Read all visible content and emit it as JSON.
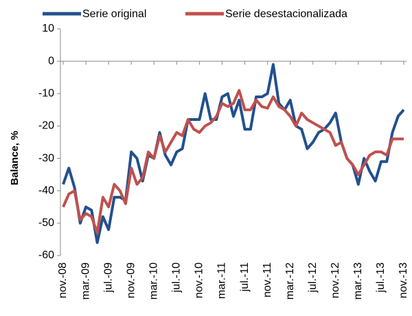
{
  "chart_data": {
    "type": "line",
    "y_label": "Balance, %",
    "categories": [
      "nov.-08",
      null,
      null,
      null,
      "mar.-09",
      null,
      null,
      null,
      "jul.-09",
      null,
      null,
      null,
      "nov.-09",
      null,
      null,
      null,
      "mar.-10",
      null,
      null,
      null,
      "jul.-10",
      null,
      null,
      null,
      "nov.-10",
      null,
      null,
      null,
      "mar.-11",
      null,
      null,
      null,
      "jul.-11",
      null,
      null,
      null,
      "nov.-11",
      null,
      null,
      null,
      "mar.-12",
      null,
      null,
      null,
      "jul.-12",
      null,
      null,
      null,
      "nov.-12",
      null,
      null,
      null,
      "mar.-13",
      null,
      null,
      null,
      "jul.-13",
      null,
      null,
      null,
      "nov.-13"
    ],
    "series": [
      {
        "name": "Serie original",
        "color": "#22508e",
        "values": [
          -38,
          -33,
          -39,
          -50,
          -45,
          -46,
          -56,
          -48,
          -52,
          -42,
          -42,
          -43,
          -28,
          -30,
          -37,
          -29,
          -30,
          -22,
          -29,
          -32,
          -28,
          -27,
          -18,
          -18,
          -18,
          -10,
          -18,
          -18,
          -11,
          -10,
          -17,
          -12,
          -21,
          -21,
          -11,
          -11,
          -10,
          -1,
          -13,
          -15,
          -12,
          -20,
          -21,
          -27,
          -25,
          -22,
          -21,
          -19,
          -16,
          -25,
          -30,
          -32,
          -38,
          -30,
          -34,
          -37,
          -31,
          -31,
          -22,
          -17,
          -15
        ]
      },
      {
        "name": "Serie desestacionalizada",
        "color": "#c0504d",
        "values": [
          -45,
          -41,
          -40,
          -49,
          -47,
          -48,
          -53,
          -42,
          -45,
          -38,
          -40,
          -44,
          -33,
          -38,
          -36,
          -28,
          -30,
          -23,
          -28,
          -25,
          -22,
          -23,
          -18,
          -21,
          -22,
          -20,
          -19,
          -17,
          -13,
          -14,
          -13,
          -9,
          -15,
          -15,
          -12,
          -14,
          -14.5,
          -11,
          -14,
          -15,
          -17,
          -20,
          -16,
          -18,
          -19,
          -20,
          -21,
          -22,
          -26,
          -25,
          -30,
          -32,
          -35,
          -32,
          -29,
          -28,
          -28,
          -29,
          -24,
          -24,
          -24
        ]
      }
    ],
    "ylim": [
      -60,
      10
    ],
    "yticks": [
      -60,
      -50,
      -40,
      -30,
      -20,
      -10,
      0,
      10
    ],
    "legend": "top"
  }
}
